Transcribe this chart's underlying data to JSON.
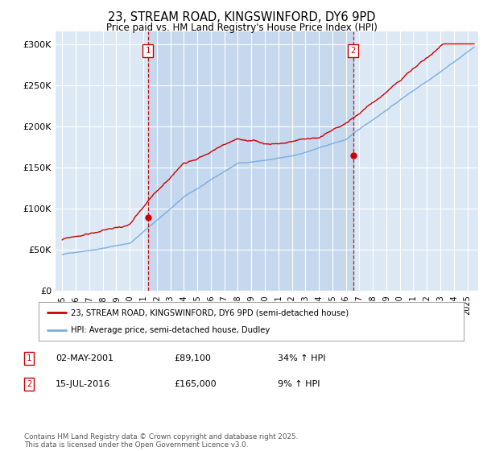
{
  "title": "23, STREAM ROAD, KINGSWINFORD, DY6 9PD",
  "subtitle": "Price paid vs. HM Land Registry's House Price Index (HPI)",
  "xlim": [
    1994.5,
    2025.8
  ],
  "ylim": [
    0,
    315000
  ],
  "yticks": [
    0,
    50000,
    100000,
    150000,
    200000,
    250000,
    300000
  ],
  "ytick_labels": [
    "£0",
    "£50K",
    "£100K",
    "£150K",
    "£200K",
    "£250K",
    "£300K"
  ],
  "background_color": "#dce9f5",
  "shaded_color": "#c5d8ee",
  "grid_color": "#ffffff",
  "purchase1_date": 2001.33,
  "purchase1_price": 89100,
  "purchase1_label": "1",
  "purchase2_date": 2016.54,
  "purchase2_price": 165000,
  "purchase2_label": "2",
  "line1_color": "#cc0000",
  "line2_color": "#7aade0",
  "legend_label1": "23, STREAM ROAD, KINGSWINFORD, DY6 9PD (semi-detached house)",
  "legend_label2": "HPI: Average price, semi-detached house, Dudley",
  "annotation1_date": "02-MAY-2001",
  "annotation1_price": "£89,100",
  "annotation1_hpi": "34% ↑ HPI",
  "annotation2_date": "15-JUL-2016",
  "annotation2_price": "£165,000",
  "annotation2_hpi": "9% ↑ HPI",
  "footer": "Contains HM Land Registry data © Crown copyright and database right 2025.\nThis data is licensed under the Open Government Licence v3.0."
}
